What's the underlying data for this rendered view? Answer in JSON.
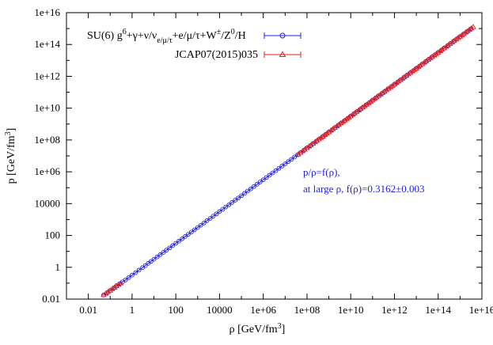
{
  "chart_data": {
    "type": "scatter",
    "xlabel_html": "ρ [GeV/fm<sup>3</sup>]",
    "xlabel_base": "ρ [GeV/fm",
    "xlabel_sup": "3",
    "xlabel_tail": "]",
    "ylabel_base": "p [GeV/fm",
    "ylabel_sup": "3",
    "ylabel_tail": "]",
    "x_scale": "log",
    "y_scale": "log",
    "xlim": [
      0.001,
      1e+16
    ],
    "ylim": [
      0.01,
      1e+16
    ],
    "x_tick_labels": [
      "0.01",
      "1",
      "100",
      "10000",
      "1e+06",
      "1e+08",
      "1e+10",
      "1e+12",
      "1e+14",
      "1e+16"
    ],
    "x_tick_values": [
      0.01,
      1,
      100,
      10000,
      1000000.0,
      100000000.0,
      10000000000.0,
      1000000000000.0,
      100000000000000.0,
      1e+16
    ],
    "y_tick_labels": [
      "0.01",
      "1",
      "100",
      "10000",
      "1e+06",
      "1e+08",
      "1e+10",
      "1e+12",
      "1e+14",
      "1e+16"
    ],
    "y_tick_values": [
      0.01,
      1,
      100,
      10000,
      1000000.0,
      100000000.0,
      10000000000.0,
      1000000000000.0,
      100000000000000.0,
      1e+16
    ],
    "grid": false,
    "legend_position": "top-left",
    "series": [
      {
        "name": "SU(6) g6+γ+ν/νe/μ/τ+e/μ/τ+W±/Z0/H",
        "marker": "circle",
        "color": "#1f1fe0",
        "x": [
          0.05,
          0.1,
          0.2,
          0.5,
          1,
          3,
          10,
          100,
          1000,
          10000,
          100000,
          1000000.0,
          10000000.0,
          100000000.0,
          1000000000.0,
          10000000000.0,
          100000000000.0,
          1000000000000.0,
          10000000000000.0,
          100000000000000.0,
          1000000000000000.0,
          3000000000000000.0
        ],
        "y": [
          0.018,
          0.035,
          0.07,
          0.16,
          0.32,
          0.95,
          3.2,
          32,
          316,
          3162,
          31620,
          316200,
          3162000.0,
          31620000.0,
          316200000.0,
          3162000000.0,
          31620000000.0,
          316200000000.0,
          3162000000000.0,
          31620000000000.0,
          316200000000000.0,
          950000000000000.0
        ]
      },
      {
        "name": "JCAP07(2015)035",
        "marker": "triangle",
        "color": "#e02020",
        "x": [
          0.05,
          0.1,
          0.3,
          40000000.0,
          100000000.0,
          1000000000.0,
          10000000000.0,
          100000000000.0,
          1000000000000.0,
          10000000000000.0,
          100000000000000.0,
          1000000000000000.0,
          4000000000000000.0
        ],
        "y": [
          0.018,
          0.035,
          0.1,
          12600000.0,
          31620000.0,
          316200000.0,
          3162000000.0,
          31620000000.0,
          316200000000.0,
          3162000000000.0,
          31620000000000.0,
          316200000000000.0,
          1260000000000000.0
        ]
      }
    ],
    "annotation": {
      "line1": "p/ρ=f(ρ),",
      "line2": "at large ρ, f(ρ)=0.3162±0.003"
    }
  },
  "legend": {
    "entry1_prefix": "SU(6) g",
    "entry1_sup1": "6",
    "entry1_mid": "+γ+ν/ν",
    "entry1_sub": "e/μ/τ",
    "entry1_mid2": "+e/μ/τ+W",
    "entry1_sup2": "±",
    "entry1_mid3": "/Z",
    "entry1_sup3": "0",
    "entry1_tail": "/H",
    "entry2": "JCAP07(2015)035"
  }
}
